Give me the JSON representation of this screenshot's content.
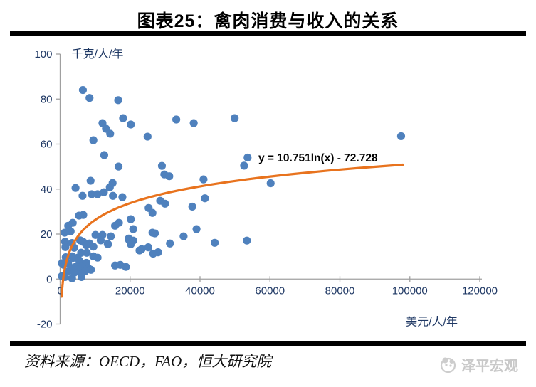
{
  "header": {
    "title": "图表25：禽肉消费与收入的关系"
  },
  "footer": {
    "source": "资料来源：OECD，FAO，恒大研究院",
    "logo_text": "泽平宏观"
  },
  "colors": {
    "point": "#4F81BD",
    "trend": "#E8731E",
    "axis_line": "#A0A0A0",
    "tick_label": "#1F3864",
    "equation": "#000000",
    "logo": "#C9C9C9"
  },
  "chart_data": {
    "type": "scatter",
    "title": "图表25：禽肉消费与收入的关系",
    "xlabel": "美元/人/年",
    "ylabel": "千克/人/年",
    "xlim": [
      0,
      120000
    ],
    "ylim": [
      -20,
      100
    ],
    "x_ticks": [
      0,
      20000,
      40000,
      60000,
      80000,
      100000,
      120000
    ],
    "y_ticks": [
      -20,
      0,
      20,
      40,
      60,
      80,
      100
    ],
    "grid": false,
    "legend": "none",
    "trendline": {
      "label": "y = 10.751ln(x) - 72.728",
      "form": "a*ln(x)+b",
      "a": 10.751,
      "b": -72.728,
      "x_start": 420,
      "x_end": 98000
    },
    "points": [
      [
        6500,
        84
      ],
      [
        8400,
        80.5
      ],
      [
        16600,
        79.5
      ],
      [
        18000,
        71.5
      ],
      [
        49900,
        71.5
      ],
      [
        33200,
        70.9
      ],
      [
        12100,
        69.3
      ],
      [
        38200,
        69.3
      ],
      [
        20200,
        68.7
      ],
      [
        13100,
        66.8
      ],
      [
        14300,
        64.6
      ],
      [
        97500,
        63.5
      ],
      [
        25000,
        63.3
      ],
      [
        9500,
        61.7
      ],
      [
        12600,
        55.1
      ],
      [
        53600,
        54
      ],
      [
        29100,
        50.3
      ],
      [
        52600,
        50.4
      ],
      [
        16700,
        50
      ],
      [
        29800,
        46.5
      ],
      [
        31200,
        45.7
      ],
      [
        41000,
        44.3
      ],
      [
        8700,
        43.7
      ],
      [
        15000,
        42.7
      ],
      [
        60200,
        42.6
      ],
      [
        14200,
        40.8
      ],
      [
        4400,
        40.5
      ],
      [
        12500,
        38.6
      ],
      [
        9000,
        37.7
      ],
      [
        10700,
        37.7
      ],
      [
        6400,
        37
      ],
      [
        15100,
        37
      ],
      [
        17800,
        36.4
      ],
      [
        41400,
        35.9
      ],
      [
        28600,
        34.8
      ],
      [
        30000,
        33.5
      ],
      [
        37800,
        32.2
      ],
      [
        25300,
        31.6
      ],
      [
        26400,
        29.4
      ],
      [
        6600,
        28.5
      ],
      [
        5400,
        28.2
      ],
      [
        20200,
        26.6
      ],
      [
        3600,
        25
      ],
      [
        16800,
        25
      ],
      [
        2300,
        23.7
      ],
      [
        15700,
        23.7
      ],
      [
        20900,
        22.2
      ],
      [
        39000,
        22.2
      ],
      [
        3000,
        21.2
      ],
      [
        1300,
        20.6
      ],
      [
        26400,
        20.6
      ],
      [
        27100,
        20.3
      ],
      [
        10100,
        19.6
      ],
      [
        12100,
        19.6
      ],
      [
        14500,
        19
      ],
      [
        35300,
        19
      ],
      [
        19600,
        18
      ],
      [
        19700,
        17.4
      ],
      [
        5700,
        17.2
      ],
      [
        11600,
        17.2
      ],
      [
        20900,
        17.1
      ],
      [
        53400,
        17.1
      ],
      [
        1400,
        16.6
      ],
      [
        6600,
        16.5
      ],
      [
        44200,
        16.1
      ],
      [
        3400,
        16
      ],
      [
        8400,
        15.8
      ],
      [
        31400,
        15.8
      ],
      [
        13600,
        15.6
      ],
      [
        13700,
        15.5
      ],
      [
        20200,
        15.5
      ],
      [
        7500,
        15
      ],
      [
        9500,
        14.4
      ],
      [
        1500,
        14.2
      ],
      [
        25200,
        14.1
      ],
      [
        4000,
        13.9
      ],
      [
        23300,
        13.3
      ],
      [
        22700,
        12.7
      ],
      [
        28000,
        11.9
      ],
      [
        6000,
        11.7
      ],
      [
        7600,
        11.7
      ],
      [
        26600,
        11.3
      ],
      [
        3400,
        10.1
      ],
      [
        9500,
        10.1
      ],
      [
        1600,
        9.7
      ],
      [
        5000,
        9.5
      ],
      [
        10700,
        9.5
      ],
      [
        3700,
        9.4
      ],
      [
        5500,
        8.1
      ],
      [
        7500,
        7.2
      ],
      [
        500,
        7
      ],
      [
        2300,
        7
      ],
      [
        1000,
        6.3
      ],
      [
        17200,
        6.3
      ],
      [
        15700,
        6
      ],
      [
        4400,
        5.4
      ],
      [
        6000,
        5.4
      ],
      [
        18800,
        5.4
      ],
      [
        3100,
        5
      ],
      [
        8100,
        4.7
      ],
      [
        5100,
        4.1
      ],
      [
        8800,
        4.1
      ],
      [
        7100,
        3.4
      ],
      [
        1900,
        3.2
      ],
      [
        4000,
        2.8
      ],
      [
        6000,
        2.2
      ],
      [
        500,
        1.3
      ],
      [
        1400,
        0.9
      ],
      [
        6100,
        0.9
      ],
      [
        3400,
        0.3
      ]
    ]
  }
}
